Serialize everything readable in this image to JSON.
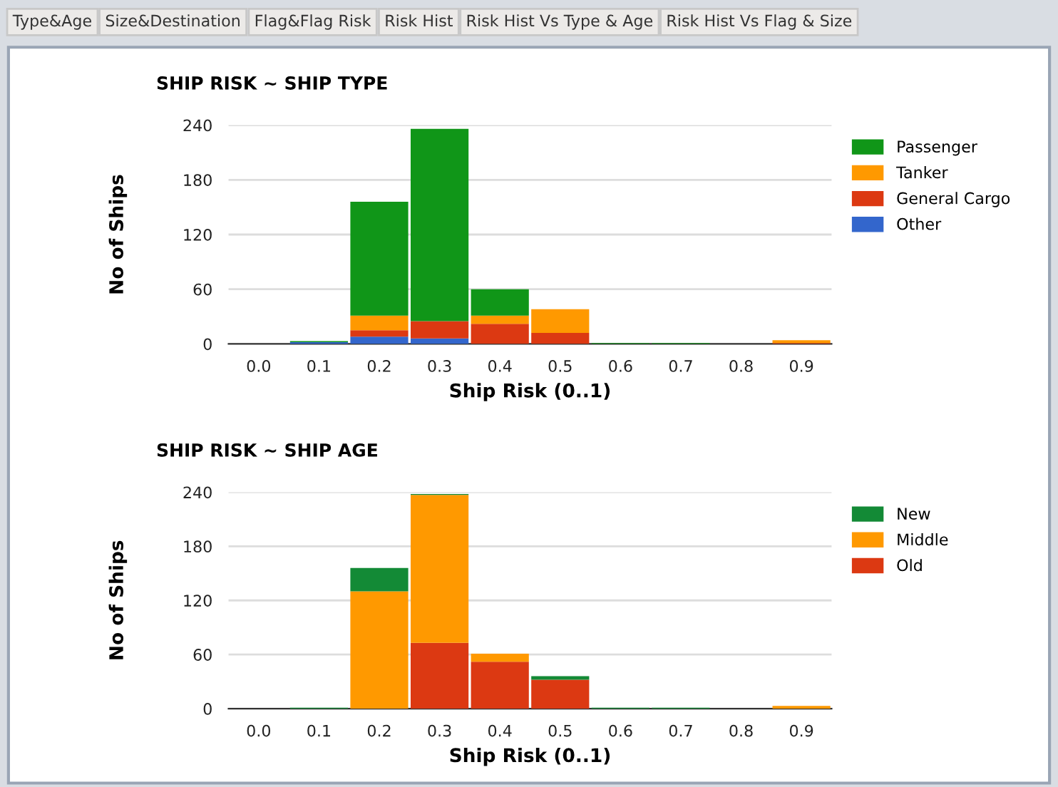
{
  "chart_data": [
    {
      "type": "bar",
      "stacked": true,
      "title": "SHIP RISK ~ SHIP TYPE",
      "xlabel": "Ship Risk (0..1)",
      "ylabel": "No of Ships",
      "annotations": [
        "Type&Age",
        "Size&Destination",
        "Flag&Flag Risk",
        "Risk Hist",
        "Risk Hist Vs Type & Age",
        "Risk Hist Vs Flag & Size"
      ],
      "categories": [
        "0.0",
        "0.1",
        "0.2",
        "0.3",
        "0.4",
        "0.5",
        "0.6",
        "0.7",
        "0.8",
        "0.9"
      ],
      "series": [
        {
          "name": "Other",
          "color": "#3366cc",
          "values": [
            0,
            2,
            8,
            6,
            0,
            0,
            0,
            0,
            0,
            0
          ]
        },
        {
          "name": "General Cargo",
          "color": "#dc3912",
          "values": [
            0,
            0,
            7,
            19,
            22,
            12,
            0,
            0,
            0,
            1
          ]
        },
        {
          "name": "Tanker",
          "color": "#ff9900",
          "values": [
            0,
            0,
            16,
            0,
            9,
            26,
            0,
            0,
            0,
            3
          ]
        },
        {
          "name": "Passenger",
          "color": "#109618",
          "values": [
            0,
            1,
            125,
            211,
            29,
            0,
            1,
            1,
            0,
            0
          ]
        }
      ],
      "ylim": [
        0,
        240
      ],
      "yticks": [
        0,
        60,
        120,
        180,
        240
      ],
      "grid": "y",
      "legend": "right"
    },
    {
      "type": "bar",
      "stacked": true,
      "title": "SHIP RISK ~ SHIP AGE",
      "xlabel": "Ship Risk (0..1)",
      "ylabel": "No of Ships",
      "categories": [
        "0.0",
        "0.1",
        "0.2",
        "0.3",
        "0.4",
        "0.5",
        "0.6",
        "0.7",
        "0.8",
        "0.9"
      ],
      "series": [
        {
          "name": "Old",
          "color": "#dc3912",
          "values": [
            0,
            0,
            0,
            73,
            52,
            32,
            0,
            0,
            0,
            0
          ]
        },
        {
          "name": "Middle",
          "color": "#ff9900",
          "values": [
            0,
            0,
            130,
            164,
            9,
            0,
            0,
            0,
            0,
            3
          ]
        },
        {
          "name": "New",
          "color": "#138a36",
          "values": [
            0,
            1,
            26,
            1,
            0,
            4,
            1,
            1,
            0,
            0
          ]
        }
      ],
      "ylim": [
        0,
        240
      ],
      "yticks": [
        0,
        60,
        120,
        180,
        240
      ],
      "grid": "y",
      "legend": "right"
    }
  ]
}
